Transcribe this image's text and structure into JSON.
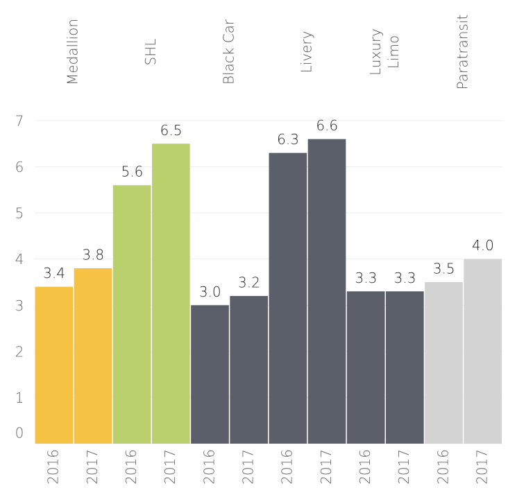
{
  "chart_data": {
    "type": "bar",
    "groups": [
      {
        "label": [
          "Medallion"
        ],
        "color": "#f6c244"
      },
      {
        "label": [
          "SHL"
        ],
        "color": "#b9d06c"
      },
      {
        "label": [
          "Black Car"
        ],
        "color": "#5b5f69"
      },
      {
        "label": [
          "Livery"
        ],
        "color": "#5b5f69"
      },
      {
        "label": [
          "Luxury",
          "Limo"
        ],
        "color": "#5b5f69"
      },
      {
        "label": [
          "Paratransit"
        ],
        "color": "#d3d3d3"
      }
    ],
    "categories": [
      "2016",
      "2017",
      "2016",
      "2017",
      "2016",
      "2017",
      "2016",
      "2017",
      "2016",
      "2017",
      "2016",
      "2017"
    ],
    "values": [
      3.4,
      3.8,
      5.6,
      6.5,
      3.0,
      3.2,
      6.3,
      6.6,
      3.3,
      3.3,
      3.5,
      4.0
    ],
    "value_labels": [
      "3.4",
      "3.8",
      "5.6",
      "6.5",
      "3.0",
      "3.2",
      "6.3",
      "6.6",
      "3.3",
      "3.3",
      "3.5",
      "4.0"
    ],
    "ylim": [
      0,
      7
    ],
    "yticks": [
      0,
      1,
      2,
      3,
      4,
      5,
      6,
      7
    ],
    "grid": true
  }
}
